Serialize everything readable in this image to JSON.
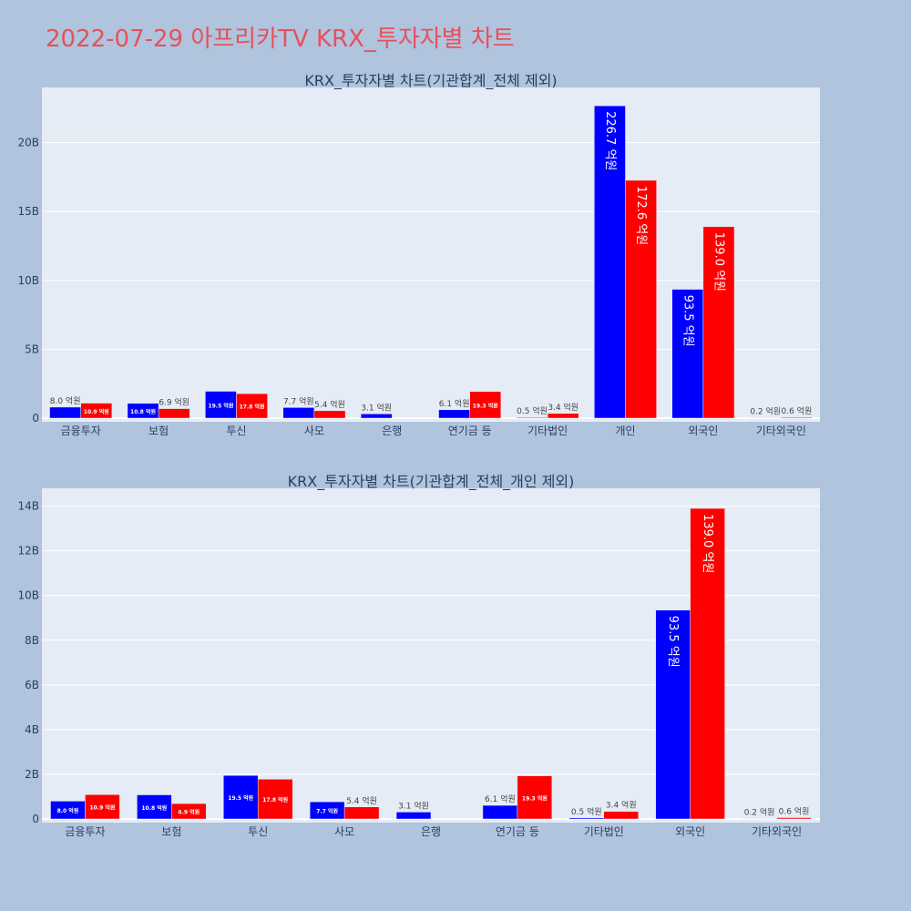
{
  "page_title": "2022-07-29 아프리카TV KRX_투자자별 차트",
  "colors": {
    "series_a": "#0000ff",
    "series_b": "#ff0000"
  },
  "chart_data": [
    {
      "type": "bar",
      "title": "KRX_투자자별 차트(기관합계_전체 제외)",
      "categories": [
        "금융투자",
        "보험",
        "투신",
        "사모",
        "은행",
        "연기금 등",
        "기타법인",
        "개인",
        "외국인",
        "기타외국인"
      ],
      "ylim": [
        0,
        24
      ],
      "yticks": [
        0,
        5,
        10,
        15,
        20
      ],
      "ytick_labels": [
        "0",
        "5B",
        "10B",
        "15B",
        "20B"
      ],
      "series": [
        {
          "values": [
            0.8,
            1.08,
            1.95,
            0.77,
            0.31,
            0.61,
            0.05,
            22.67,
            9.35,
            0.02
          ],
          "labels": [
            "8.0 억원",
            "10.8 억원",
            "19.5 억원",
            "7.7 억원",
            "3.1 억원",
            "6.1 억원",
            "0.5 억원",
            "226.7 억원",
            "93.5 억원",
            "0.2 억원"
          ]
        },
        {
          "values": [
            1.09,
            0.69,
            1.78,
            0.54,
            0,
            1.93,
            0.34,
            17.26,
            13.9,
            0.06
          ],
          "labels": [
            "10.9 억원",
            "6.9 억원",
            "17.8 억원",
            "5.4 억원",
            "",
            "19.3 억원",
            "3.4 억원",
            "172.6 억원",
            "139.0 억원",
            "0.6 억원"
          ]
        }
      ]
    },
    {
      "type": "bar",
      "title": "KRX_투자자별 차트(기관합계_전체_개인 제외)",
      "categories": [
        "금융투자",
        "보험",
        "투신",
        "사모",
        "은행",
        "연기금 등",
        "기타법인",
        "외국인",
        "기타외국인"
      ],
      "ylim": [
        0,
        14.8
      ],
      "yticks": [
        0,
        2,
        4,
        6,
        8,
        10,
        12,
        14
      ],
      "ytick_labels": [
        "0",
        "2B",
        "4B",
        "6B",
        "8B",
        "10B",
        "12B",
        "14B"
      ],
      "series": [
        {
          "values": [
            0.8,
            1.08,
            1.95,
            0.77,
            0.31,
            0.61,
            0.05,
            9.35,
            0.02
          ],
          "labels": [
            "8.0 억원",
            "10.8 억원",
            "19.5 억원",
            "7.7 억원",
            "3.1 억원",
            "6.1 억원",
            "0.5 억원",
            "93.5 억원",
            "0.2 억원"
          ]
        },
        {
          "values": [
            1.09,
            0.69,
            1.78,
            0.54,
            0,
            1.93,
            0.34,
            13.9,
            0.06
          ],
          "labels": [
            "10.9 억원",
            "6.9 억원",
            "17.8 억원",
            "5.4 억원",
            "",
            "19.3 억원",
            "3.4 억원",
            "139.0 억원",
            "0.6 억원"
          ]
        }
      ]
    }
  ]
}
